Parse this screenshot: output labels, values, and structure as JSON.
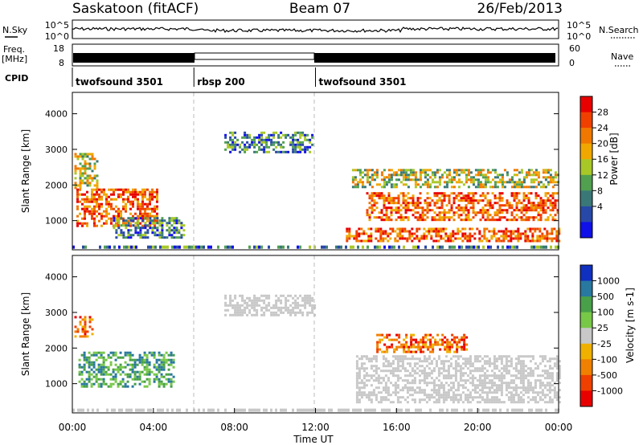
{
  "header": {
    "station": "Saskatoon (fitACF)",
    "beam": "Beam 07",
    "date": "26/Feb/2013"
  },
  "top_panels": {
    "nsky_label": "N.Sky",
    "nsky_ticks": [
      "10^5",
      "10^0"
    ],
    "nsearch_label": "N.Search",
    "nsearch_ticks": [
      "10^5",
      "10^0"
    ],
    "freq_label_1": "Freq.",
    "freq_label_2": "[MHz]",
    "freq_ticks": [
      "18",
      "8"
    ],
    "nave_label": "Nave",
    "nave_ticks": [
      "60",
      "0"
    ],
    "cpid_label": "CPID",
    "cpid_segments": [
      {
        "name": "twofsound 3501",
        "start_hour": 0,
        "end_hour": 6
      },
      {
        "name": "rbsp 200",
        "start_hour": 6,
        "end_hour": 12
      },
      {
        "name": "twofsound 3501",
        "start_hour": 12,
        "end_hour": 24
      }
    ]
  },
  "chart_data": [
    {
      "type": "heatmap",
      "panel": "power",
      "ylabel": "Slant Range [km]",
      "yticks": [
        "4000",
        "3000",
        "2000",
        "1000"
      ],
      "ylim": [
        180,
        4600
      ],
      "xlim": [
        0,
        24
      ],
      "colorbar_label": "Power [dB]",
      "colorbar_ticks": [
        "28",
        "24",
        "20",
        "16",
        "12",
        "8",
        "4"
      ],
      "colorbar_colors": [
        "#e80000",
        "#f04000",
        "#f07800",
        "#f0a800",
        "#a8c828",
        "#50a050",
        "#3a7878",
        "#2848a8",
        "#1010e8"
      ],
      "regions": [
        {
          "t0": 0.1,
          "t1": 1.2,
          "r0": 1900,
          "r1": 2900,
          "level": "mid"
        },
        {
          "t0": 0.2,
          "t1": 4.2,
          "r0": 850,
          "r1": 1900,
          "level": "high"
        },
        {
          "t0": 2.0,
          "t1": 5.5,
          "r0": 500,
          "r1": 1100,
          "level": "low"
        },
        {
          "t0": 13.8,
          "t1": 24.0,
          "r0": 1950,
          "r1": 2450,
          "level": "mid"
        },
        {
          "t0": 14.5,
          "t1": 24.0,
          "r0": 1000,
          "r1": 1800,
          "level": "high"
        },
        {
          "t0": 13.5,
          "t1": 24.0,
          "r0": 400,
          "r1": 800,
          "level": "high"
        },
        {
          "t0": 7.5,
          "t1": 11.8,
          "r0": 2900,
          "r1": 3500,
          "level": "low"
        }
      ]
    },
    {
      "type": "heatmap",
      "panel": "velocity",
      "xlabel": "Time UT",
      "ylabel": "Slant Range [km]",
      "yticks": [
        "4000",
        "3000",
        "2000",
        "1000"
      ],
      "ylim": [
        180,
        4600
      ],
      "xlim": [
        0,
        24
      ],
      "xticks": [
        "00:00",
        "04:00",
        "08:00",
        "12:00",
        "16:00",
        "20:00",
        "00:00"
      ],
      "colorbar_label": "Velocity [m s-1]",
      "colorbar_ticks": [
        "1000",
        "500",
        "100",
        "25",
        "-25",
        "-100",
        "-500",
        "-1000"
      ],
      "colorbar_colors": [
        "#1030c0",
        "#2878a0",
        "#48a048",
        "#78c848",
        "#c8c8c8",
        "#f0b000",
        "#f08000",
        "#f04000",
        "#e80000"
      ],
      "regions": [
        {
          "t0": 0.1,
          "t1": 1.0,
          "r0": 2300,
          "r1": 2900,
          "level": "neg"
        },
        {
          "t0": 0.3,
          "t1": 5.0,
          "r0": 900,
          "r1": 1900,
          "level": "pos"
        },
        {
          "t0": 15.0,
          "t1": 19.5,
          "r0": 1900,
          "r1": 2400,
          "level": "neg"
        },
        {
          "t0": 14.0,
          "t1": 24.0,
          "r0": 500,
          "r1": 1800,
          "level": "zero"
        },
        {
          "t0": 7.5,
          "t1": 12.0,
          "r0": 2900,
          "r1": 3500,
          "level": "zero"
        }
      ]
    }
  ]
}
